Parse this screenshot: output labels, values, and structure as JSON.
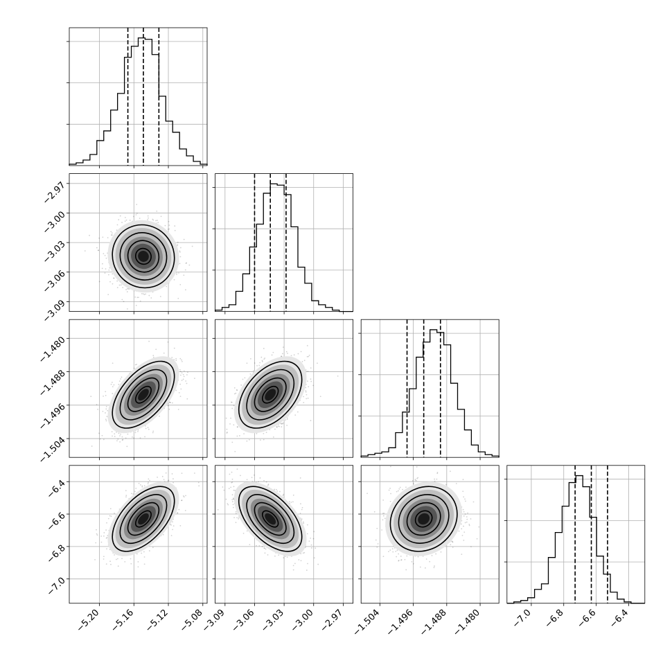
{
  "chart_data": {
    "type": "corner",
    "grid": true,
    "parameters": [
      {
        "range": [
          -5.235,
          -5.075
        ],
        "ticks": [
          -5.2,
          -5.16,
          -5.12,
          -5.08
        ],
        "tick_labels": [
          "−5.20",
          "−5.16",
          "−5.12",
          "−5.08"
        ],
        "median": -5.149,
        "q16": -5.167,
        "q84": -5.131,
        "sigma": 0.018
      },
      {
        "range": [
          -3.1,
          -2.96
        ],
        "ticks": [
          -3.09,
          -3.06,
          -3.03,
          -3.0,
          -2.97
        ],
        "tick_labels": [
          "−3.09",
          "−3.06",
          "−3.03",
          "−3.00",
          "−2.97"
        ],
        "median": -3.044,
        "q16": -3.06,
        "q84": -3.028,
        "sigma": 0.016
      },
      {
        "range": [
          -1.5085,
          -1.4755
        ],
        "ticks": [
          -1.504,
          -1.496,
          -1.488,
          -1.48
        ],
        "tick_labels": [
          "−1.504",
          "−1.496",
          "−1.488",
          "−1.480"
        ],
        "median": -1.4935,
        "q16": -1.4975,
        "q84": -1.4895,
        "sigma": 0.004
      },
      {
        "range": [
          -7.15,
          -6.3
        ],
        "ticks": [
          -7.0,
          -6.8,
          -6.6,
          -6.4
        ],
        "tick_labels": [
          "−7.0",
          "−6.8",
          "−6.6",
          "−6.4"
        ],
        "median": -6.63,
        "q16": -6.73,
        "q84": -6.53,
        "sigma": 0.1
      }
    ],
    "correlations": [
      [
        1.0,
        -0.05,
        0.55,
        0.55
      ],
      [
        -0.05,
        1.0,
        0.45,
        -0.55
      ],
      [
        0.55,
        0.45,
        1.0,
        0.15
      ],
      [
        0.55,
        -0.55,
        0.15,
        1.0
      ]
    ],
    "histograms": [
      [
        1,
        2,
        4,
        8,
        18,
        25,
        40,
        52,
        78,
        86,
        92,
        91,
        80,
        50,
        32,
        24,
        12,
        7,
        3,
        1
      ],
      [
        1,
        3,
        5,
        15,
        28,
        48,
        65,
        88,
        95,
        94,
        87,
        63,
        33,
        21,
        8,
        5,
        3,
        1,
        0,
        0
      ],
      [
        1,
        2,
        3,
        4,
        7,
        18,
        33,
        50,
        73,
        84,
        93,
        91,
        82,
        54,
        35,
        20,
        9,
        4,
        2,
        1
      ],
      [
        0,
        1,
        2,
        4,
        10,
        14,
        33,
        51,
        70,
        87,
        92,
        84,
        62,
        34,
        21,
        8,
        3,
        1,
        0,
        0
      ]
    ]
  }
}
